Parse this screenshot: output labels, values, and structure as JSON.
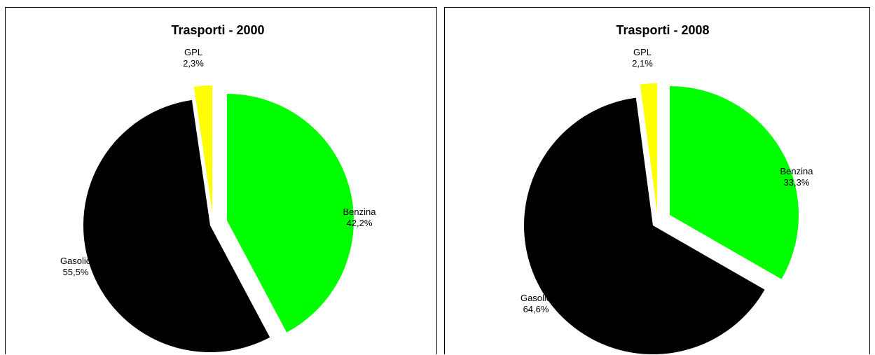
{
  "chart_data": [
    {
      "type": "pie",
      "title": "Trasporti - 2000",
      "slices": [
        {
          "name": "Benzina",
          "value": 42.2,
          "label": "42,2%",
          "color": "#00ff00"
        },
        {
          "name": "Gasolio",
          "value": 55.5,
          "label": "55,5%",
          "color": "#000000"
        },
        {
          "name": "GPL",
          "value": 2.3,
          "label": "2,3%",
          "color": "#ffff00"
        }
      ]
    },
    {
      "type": "pie",
      "title": "Trasporti - 2008",
      "slices": [
        {
          "name": "Benzina",
          "value": 33.3,
          "label": "33,3%",
          "color": "#00ff00"
        },
        {
          "name": "Gasolio",
          "value": 64.6,
          "label": "64,6%",
          "color": "#000000"
        },
        {
          "name": "GPL",
          "value": 2.1,
          "label": "2,1%",
          "color": "#ffff00"
        }
      ]
    }
  ]
}
